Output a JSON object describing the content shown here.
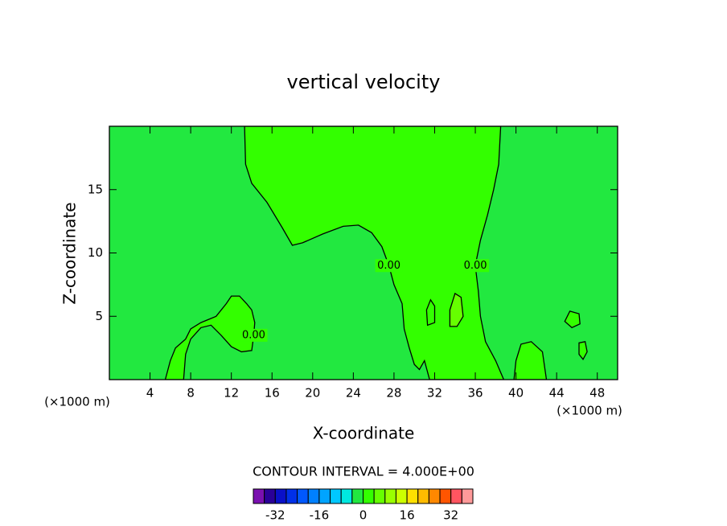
{
  "chart_data": {
    "type": "contour",
    "title": "vertical velocity",
    "xlabel": "X-coordinate",
    "ylabel": "Z-coordinate",
    "x_unit_label": "(×1000 m)",
    "x_unit_label_right": "(×1000 m)",
    "xlim": [
      0,
      50
    ],
    "ylim": [
      0,
      20
    ],
    "xticks": [
      4,
      8,
      12,
      16,
      20,
      24,
      28,
      32,
      36,
      40,
      44,
      48
    ],
    "yticks": [
      5,
      10,
      15
    ],
    "contour_interval_text": "CONTOUR INTERVAL = 4.000E+00",
    "colorbar": {
      "levels": [
        -40,
        -36,
        -32,
        -28,
        -24,
        -20,
        -16,
        -12,
        -8,
        -4,
        0,
        4,
        8,
        12,
        16,
        20,
        24,
        28,
        32,
        36,
        40
      ],
      "colors": [
        "#7a10b0",
        "#2a0098",
        "#0a10c8",
        "#0030e8",
        "#0058ff",
        "#0080ff",
        "#00a4ff",
        "#00c8ff",
        "#00e8e0",
        "#22e840",
        "#33ff00",
        "#66ff00",
        "#99ff00",
        "#ccff00",
        "#ffe000",
        "#ffbb00",
        "#ff8800",
        "#ff5500",
        "#ff5560",
        "#ff9a9a"
      ],
      "ticks": [
        -32,
        -16,
        0,
        16,
        32
      ]
    },
    "contours": [
      {
        "level": 0,
        "label": "0.00",
        "x": [
          13.3,
          13.4,
          14,
          15.5,
          17,
          18,
          19,
          21,
          23,
          24.5,
          25.8,
          26.8,
          27.5,
          28,
          28.8,
          29,
          29.5,
          30,
          30.5,
          31,
          31.5,
          38.8,
          38,
          37,
          36.5,
          36.3,
          36,
          36.5,
          37.2,
          37.8,
          38.3,
          38.5
        ],
        "y": [
          20,
          17,
          15.5,
          14,
          12,
          10.6,
          10.8,
          11.5,
          12.1,
          12.2,
          11.6,
          10.5,
          9,
          7.5,
          6,
          4,
          2.5,
          1.2,
          0.8,
          1.5,
          0,
          0,
          1.5,
          3,
          5,
          7,
          9,
          11,
          13,
          15,
          17,
          20
        ]
      },
      {
        "level": 0,
        "label": "0.00",
        "x": [
          5.5,
          6,
          6.5,
          7.5,
          8,
          9,
          10.5,
          11.5,
          12,
          12.8,
          13.5,
          14,
          14.3,
          14.2,
          14,
          13,
          12,
          11,
          10,
          9,
          8,
          7.5,
          7.3
        ],
        "y": [
          0,
          1.5,
          2.5,
          3.2,
          4,
          4.5,
          5,
          6,
          6.6,
          6.6,
          6,
          5.5,
          4.5,
          3.5,
          2.3,
          2.2,
          2.6,
          3.5,
          4.3,
          4.1,
          3.2,
          2,
          0
        ]
      },
      {
        "level": 0,
        "x": [
          31.3,
          31.2,
          31.6,
          32,
          32
        ],
        "y": [
          4.3,
          5.5,
          6.3,
          5.8,
          4.5
        ]
      },
      {
        "level": 0,
        "x": [
          44.8,
          45.3,
          46.2,
          46.3,
          45.5
        ],
        "y": [
          4.6,
          5.4,
          5.2,
          4.4,
          4.1
        ]
      },
      {
        "level": 0,
        "x": [
          46.2,
          46.2,
          46.8,
          47,
          46.6
        ],
        "y": [
          2,
          2.9,
          3,
          2.2,
          1.6
        ]
      },
      {
        "level": 0,
        "x": [
          39.8,
          40,
          40.5,
          41.5,
          42.6,
          43
        ],
        "y": [
          0,
          1.5,
          2.8,
          3,
          2.2,
          0
        ]
      },
      {
        "level": 4,
        "x": [
          33.5,
          33.5,
          34,
          34.6,
          34.8,
          34.2
        ],
        "y": [
          4.2,
          5.5,
          6.8,
          6.5,
          5,
          4.2
        ]
      }
    ]
  }
}
